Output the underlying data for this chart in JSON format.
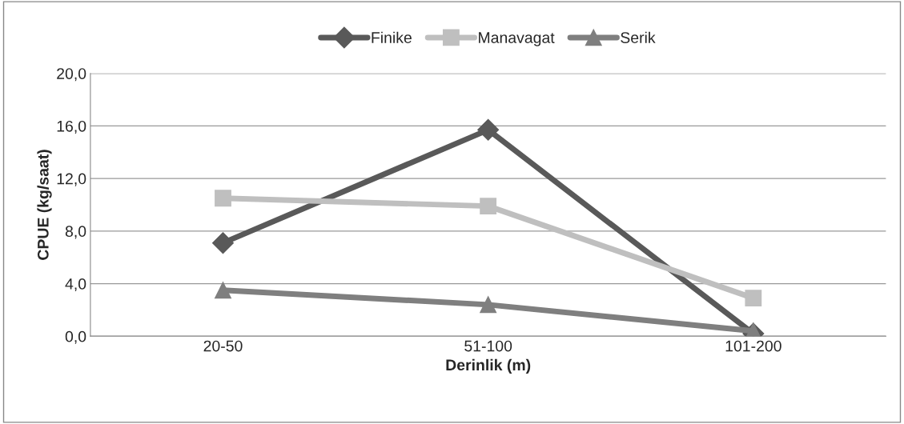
{
  "chart_data": {
    "type": "line",
    "xlabel": "Derinlik (m)",
    "ylabel": "CPUE (kg/saat)",
    "categories": [
      "20-50",
      "51-100",
      "101-200"
    ],
    "series": [
      {
        "name": "Finike",
        "color": "#595959",
        "values": [
          7.1,
          15.7,
          0.2
        ],
        "marker": "diamond"
      },
      {
        "name": "Manavagat",
        "color": "#bfbfbf",
        "values": [
          10.5,
          9.9,
          2.9
        ],
        "marker": "square"
      },
      {
        "name": "Serik",
        "color": "#7f7f7f",
        "values": [
          3.5,
          2.4,
          0.4
        ],
        "marker": "triangle"
      }
    ],
    "ylim": [
      0,
      20
    ],
    "yticks": [
      {
        "value": 0,
        "label": "0,0"
      },
      {
        "value": 4,
        "label": "4,0"
      },
      {
        "value": 8,
        "label": "8,0"
      },
      {
        "value": 12,
        "label": "12,0"
      },
      {
        "value": 16,
        "label": "16,0"
      },
      {
        "value": 20,
        "label": "20,0"
      }
    ],
    "grid": "y",
    "legend": "top",
    "line_style": "solid"
  }
}
